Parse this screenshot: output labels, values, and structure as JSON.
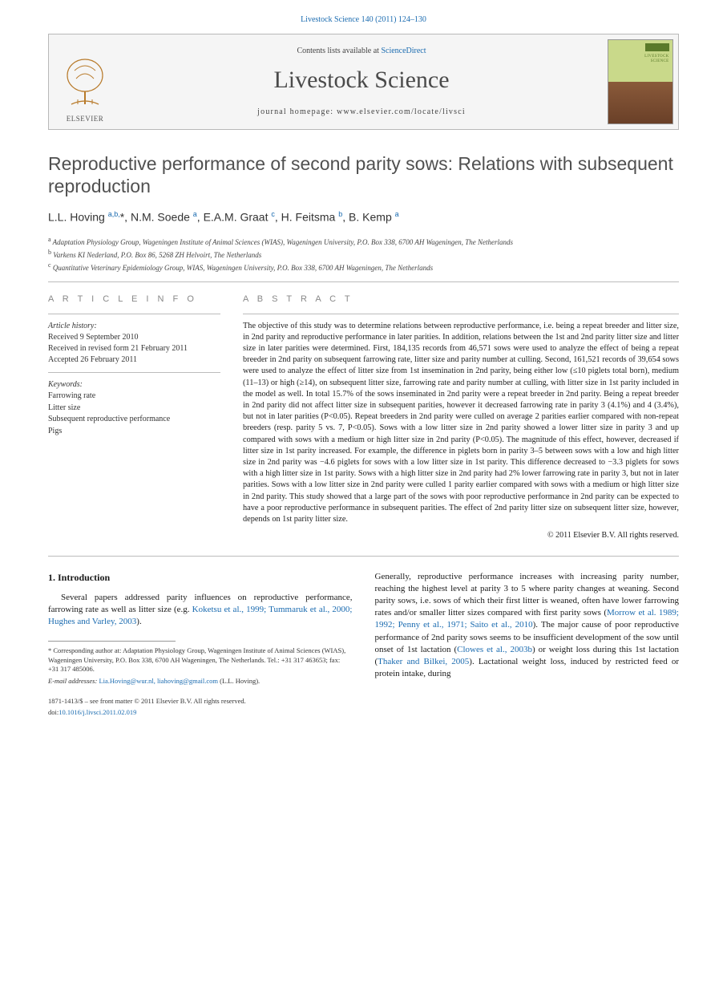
{
  "header": {
    "citation": "Livestock Science 140 (2011) 124–130",
    "contents_prefix": "Contents lists available at ",
    "contents_link": "ScienceDirect",
    "journal_name": "Livestock Science",
    "homepage_prefix": "journal homepage: ",
    "homepage_url": "www.elsevier.com/locate/livsci",
    "publisher_label": "ELSEVIER"
  },
  "title": "Reproductive performance of second parity sows: Relations with subsequent reproduction",
  "authors_html": "L.L. Hoving <sup>a,b,</sup>*, N.M. Soede <sup>a</sup>, E.A.M. Graat <sup>c</sup>, H. Feitsma <sup>b</sup>, B. Kemp <sup>a</sup>",
  "affiliations": [
    {
      "sup": "a",
      "text": "Adaptation Physiology Group, Wageningen Institute of Animal Sciences (WIAS), Wageningen University, P.O. Box 338, 6700 AH Wageningen, The Netherlands"
    },
    {
      "sup": "b",
      "text": "Varkens KI Nederland, P.O. Box 86, 5268 ZH Helvoirt, The Netherlands"
    },
    {
      "sup": "c",
      "text": "Quantitative Veterinary Epidemiology Group, WIAS, Wageningen University, P.O. Box 338, 6700 AH Wageningen, The Netherlands"
    }
  ],
  "article_info": {
    "label": "A R T I C L E   I N F O",
    "history_label": "Article history:",
    "history": [
      "Received 9 September 2010",
      "Received in revised form 21 February 2011",
      "Accepted 26 February 2011"
    ],
    "keywords_label": "Keywords:",
    "keywords": [
      "Farrowing rate",
      "Litter size",
      "Subsequent reproductive performance",
      "Pigs"
    ]
  },
  "abstract": {
    "label": "A B S T R A C T",
    "text": "The objective of this study was to determine relations between reproductive performance, i.e. being a repeat breeder and litter size, in 2nd parity and reproductive performance in later parities. In addition, relations between the 1st and 2nd parity litter size and litter size in later parities were determined. First, 184,135 records from 46,571 sows were used to analyze the effect of being a repeat breeder in 2nd parity on subsequent farrowing rate, litter size and parity number at culling. Second, 161,521 records of 39,654 sows were used to analyze the effect of litter size from 1st insemination in 2nd parity, being either low (≤10 piglets total born), medium (11–13) or high (≥14), on subsequent litter size, farrowing rate and parity number at culling, with litter size in 1st parity included in the model as well. In total 15.7% of the sows inseminated in 2nd parity were a repeat breeder in 2nd parity. Being a repeat breeder in 2nd parity did not affect litter size in subsequent parities, however it decreased farrowing rate in parity 3 (4.1%) and 4 (3.4%), but not in later parities (P<0.05). Repeat breeders in 2nd parity were culled on average 2 parities earlier compared with non-repeat breeders (resp. parity 5 vs. 7, P<0.05). Sows with a low litter size in 2nd parity showed a lower litter size in parity 3 and up compared with sows with a medium or high litter size in 2nd parity (P<0.05). The magnitude of this effect, however, decreased if litter size in 1st parity increased. For example, the difference in piglets born in parity 3–5 between sows with a low and high litter size in 2nd parity was −4.6 piglets for sows with a low litter size in 1st parity. This difference decreased to −3.3 piglets for sows with a high litter size in 1st parity. Sows with a high litter size in 2nd parity had 2% lower farrowing rate in parity 3, but not in later parities. Sows with a low litter size in 2nd parity were culled 1 parity earlier compared with sows with a medium or high litter size in 2nd parity. This study showed that a large part of the sows with poor reproductive performance in 2nd parity can be expected to have a poor reproductive performance in subsequent parities. The effect of 2nd parity litter size on subsequent litter size, however, depends on 1st parity litter size.",
    "copyright": "© 2011 Elsevier B.V. All rights reserved."
  },
  "sections": {
    "intro_heading": "1. Introduction",
    "intro_left": "Several papers addressed parity influences on reproductive performance, farrowing rate as well as litter size (e.g. ",
    "intro_left_cite": "Koketsu et al., 1999; Tummaruk et al., 2000; Hughes and Varley, 2003",
    "intro_left_end": ").",
    "intro_right_1": "Generally, reproductive performance increases with increasing parity number, reaching the highest level at parity 3 to 5 where parity changes at weaning. Second parity sows, i.e. sows of which their first litter is weaned, often have lower farrowing rates and/or smaller litter sizes compared with first parity sows (",
    "intro_right_cite1": "Morrow et al. 1989; 1992; Penny et al., 1971; Saito et al., 2010",
    "intro_right_2": "). The major cause of poor reproductive performance of 2nd parity sows seems to be insufficient development of the sow until onset of 1st lactation (",
    "intro_right_cite2": "Clowes et al., 2003b",
    "intro_right_3": ") or weight loss during this 1st lactation (",
    "intro_right_cite3": "Thaker and Bilkei, 2005",
    "intro_right_4": "). Lactational weight loss, induced by restricted feed or protein intake, during"
  },
  "footnote": {
    "corr_label": "* Corresponding author at: Adaptation Physiology Group, Wageningen Institute of Animal Sciences (WIAS), Wageningen University, P.O. Box 338, 6700 AH Wageningen, The Netherlands. Tel.: +31 317 463653; fax: +31 317 485006.",
    "email_label": "E-mail addresses:",
    "emails": "Lia.Hoving@wur.nl, liahoving@gmail.com",
    "email_suffix": " (L.L. Hoving)."
  },
  "footer": {
    "issn_line": "1871-1413/$ – see front matter © 2011 Elsevier B.V. All rights reserved.",
    "doi_label": "doi:",
    "doi": "10.1016/j.livsci.2011.02.019"
  },
  "colors": {
    "link": "#1a6bb0",
    "text": "#1a1a1a",
    "muted": "#888888",
    "rule": "#bcbcbc"
  }
}
